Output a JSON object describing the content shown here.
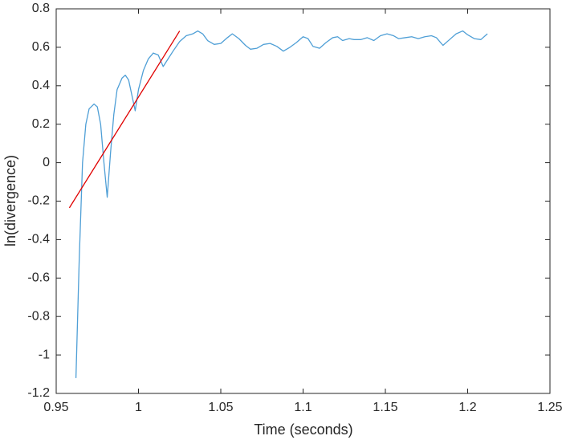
{
  "chart_data": {
    "type": "line",
    "xlabel": "Time (seconds)",
    "ylabel": "ln(divergence)",
    "xlim": [
      0.95,
      1.25
    ],
    "xticks": [
      0.95,
      1,
      1.05,
      1.1,
      1.15,
      1.2,
      1.25
    ],
    "ylim": [
      -1.2,
      0.8
    ],
    "yticks": [
      0.8,
      0.6,
      0.4,
      0.2,
      0,
      -0.2,
      -0.4,
      -0.6,
      -0.8,
      -1,
      -1.2
    ],
    "series": [
      {
        "color": "#4f9fd6",
        "x": [
          0.962,
          0.964,
          0.966,
          0.968,
          0.97,
          0.973,
          0.975,
          0.977,
          0.979,
          0.981,
          0.983,
          0.985,
          0.987,
          0.99,
          0.992,
          0.994,
          0.996,
          0.998,
          1.0,
          1.003,
          1.006,
          1.009,
          1.012,
          1.015,
          1.018,
          1.021,
          1.025,
          1.029,
          1.033,
          1.036,
          1.039,
          1.042,
          1.046,
          1.05,
          1.054,
          1.057,
          1.061,
          1.065,
          1.068,
          1.072,
          1.076,
          1.08,
          1.084,
          1.088,
          1.092,
          1.096,
          1.1,
          1.103,
          1.106,
          1.11,
          1.114,
          1.118,
          1.121,
          1.124,
          1.128,
          1.131,
          1.135,
          1.139,
          1.143,
          1.147,
          1.151,
          1.155,
          1.158,
          1.162,
          1.166,
          1.17,
          1.174,
          1.178,
          1.181,
          1.185,
          1.189,
          1.193,
          1.197,
          1.2,
          1.204,
          1.208,
          1.212
        ],
        "values": [
          -1.12,
          -0.5,
          0.0,
          0.2,
          0.28,
          0.305,
          0.29,
          0.2,
          0.0,
          -0.18,
          0.05,
          0.25,
          0.38,
          0.44,
          0.455,
          0.43,
          0.35,
          0.27,
          0.38,
          0.48,
          0.54,
          0.57,
          0.56,
          0.5,
          0.54,
          0.58,
          0.63,
          0.66,
          0.67,
          0.685,
          0.67,
          0.635,
          0.615,
          0.62,
          0.65,
          0.67,
          0.645,
          0.61,
          0.59,
          0.595,
          0.615,
          0.62,
          0.605,
          0.58,
          0.6,
          0.625,
          0.655,
          0.645,
          0.605,
          0.595,
          0.625,
          0.65,
          0.655,
          0.635,
          0.645,
          0.64,
          0.64,
          0.65,
          0.635,
          0.66,
          0.67,
          0.66,
          0.645,
          0.65,
          0.655,
          0.645,
          0.655,
          0.66,
          0.65,
          0.61,
          0.64,
          0.67,
          0.685,
          0.665,
          0.645,
          0.64,
          0.67
        ]
      },
      {
        "color": "#e00000",
        "x": [
          0.958,
          1.025
        ],
        "values": [
          -0.235,
          0.685
        ]
      }
    ]
  }
}
